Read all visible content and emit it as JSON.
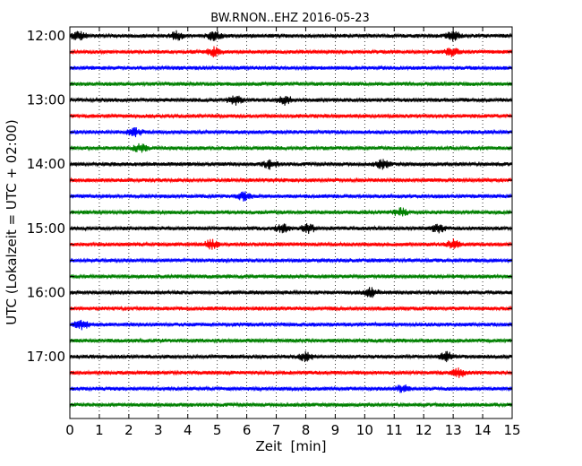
{
  "chart_data": {
    "type": "line",
    "title": "BW.RNON..EHZ 2016-05-23",
    "xlabel": "Zeit  [min]",
    "ylabel": "UTC (Lokalzeit = UTC + 02:00)",
    "xlim": [
      0,
      15
    ],
    "x_ticks": [
      "0",
      "1",
      "2",
      "3",
      "4",
      "5",
      "6",
      "7",
      "8",
      "9",
      "10",
      "11",
      "12",
      "13",
      "14",
      "15"
    ],
    "y_tick_labels": [
      "12:00",
      "13:00",
      "14:00",
      "15:00",
      "16:00",
      "17:00"
    ],
    "grid": "vertical dotted at each minute",
    "trace_colors": [
      "#000000",
      "#ff0000",
      "#0000ff",
      "#008000"
    ],
    "traces": [
      {
        "start": "12:00",
        "events_min": [
          0.3,
          3.6,
          4.9,
          13.0
        ]
      },
      {
        "start": "12:15",
        "events_min": [
          4.9,
          13.0
        ]
      },
      {
        "start": "12:30",
        "events_min": []
      },
      {
        "start": "12:45",
        "events_min": []
      },
      {
        "start": "13:00",
        "events_min": [
          5.6,
          7.3
        ]
      },
      {
        "start": "13:15",
        "events_min": []
      },
      {
        "start": "13:30",
        "events_min": [
          2.2
        ]
      },
      {
        "start": "13:45",
        "events_min": [
          2.4
        ]
      },
      {
        "start": "14:00",
        "events_min": [
          6.8,
          10.6
        ]
      },
      {
        "start": "14:15",
        "events_min": []
      },
      {
        "start": "14:30",
        "events_min": [
          5.9
        ]
      },
      {
        "start": "14:45",
        "events_min": [
          11.2
        ]
      },
      {
        "start": "15:00",
        "events_min": [
          7.2,
          8.1,
          12.5
        ]
      },
      {
        "start": "15:15",
        "events_min": [
          4.8,
          13.0
        ]
      },
      {
        "start": "15:30",
        "events_min": []
      },
      {
        "start": "15:45",
        "events_min": []
      },
      {
        "start": "16:00",
        "events_min": [
          10.2
        ]
      },
      {
        "start": "16:15",
        "events_min": []
      },
      {
        "start": "16:30",
        "events_min": [
          0.4
        ]
      },
      {
        "start": "16:45",
        "events_min": []
      },
      {
        "start": "17:00",
        "events_min": [
          8.0,
          12.8
        ]
      },
      {
        "start": "17:15",
        "events_min": [
          13.2
        ]
      },
      {
        "start": "17:30",
        "events_min": [
          11.3
        ]
      },
      {
        "start": "17:45",
        "events_min": []
      }
    ]
  }
}
